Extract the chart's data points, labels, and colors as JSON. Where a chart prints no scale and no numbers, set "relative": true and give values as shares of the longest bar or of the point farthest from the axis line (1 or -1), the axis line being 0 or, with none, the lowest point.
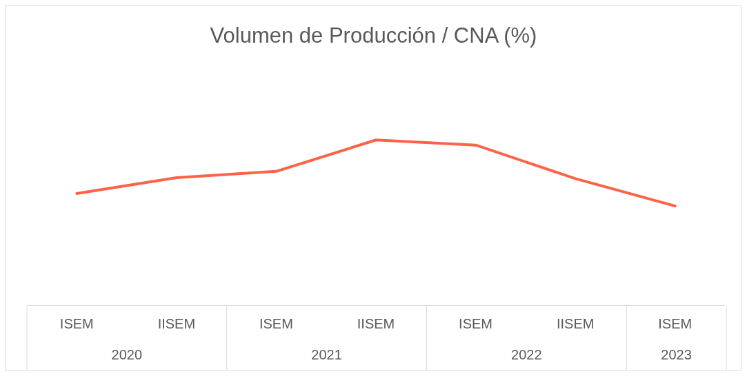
{
  "chart_data": {
    "type": "line",
    "title": "Volumen de Producción / CNA (%)",
    "categories": [
      "ISEM",
      "IISEM",
      "ISEM",
      "IISEM",
      "ISEM",
      "IISEM",
      "ISEM"
    ],
    "annotations": [
      "2020",
      "2021",
      "2022",
      "2023"
    ],
    "relative": true,
    "series": [
      {
        "color": "#ff6347",
        "values": [
          0.676,
          0.772,
          0.81,
          1,
          0.969,
          0.766,
          0.6
        ]
      }
    ],
    "marker": "none"
  }
}
